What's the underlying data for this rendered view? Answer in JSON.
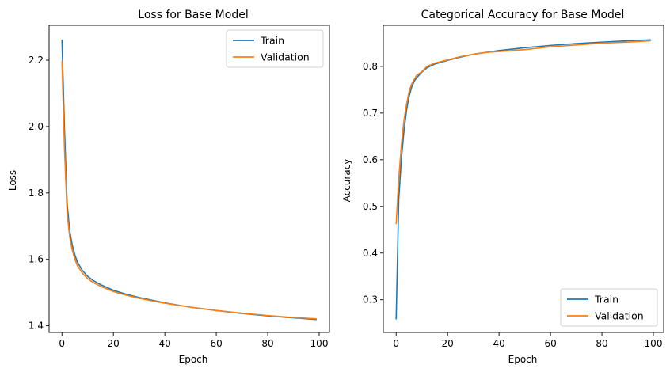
{
  "chart_data": [
    {
      "type": "line",
      "title": "Loss for Base Model",
      "xlabel": "Epoch",
      "ylabel": "Loss",
      "xlim": [
        -5,
        104
      ],
      "ylim": [
        1.38,
        2.305
      ],
      "xticks": [
        0,
        20,
        40,
        60,
        80,
        100
      ],
      "yticks": [
        1.4,
        1.6,
        1.8,
        2.0,
        2.2
      ],
      "legend": "top-right",
      "grid": false,
      "series": [
        {
          "name": "Train",
          "color": "#1f77b4",
          "points": [
            [
              0,
              2.262
            ],
            [
              1,
              1.99
            ],
            [
              2,
              1.77
            ],
            [
              3,
              1.686
            ],
            [
              4,
              1.643
            ],
            [
              5,
              1.614
            ],
            [
              6,
              1.592
            ],
            [
              8,
              1.566
            ],
            [
              10,
              1.549
            ],
            [
              12,
              1.537
            ],
            [
              15,
              1.524
            ],
            [
              20,
              1.507
            ],
            [
              25,
              1.495
            ],
            [
              30,
              1.485
            ],
            [
              35,
              1.477
            ],
            [
              40,
              1.469
            ],
            [
              50,
              1.456
            ],
            [
              60,
              1.446
            ],
            [
              70,
              1.437
            ],
            [
              80,
              1.43
            ],
            [
              90,
              1.424
            ],
            [
              99,
              1.419
            ]
          ]
        },
        {
          "name": "Validation",
          "color": "#ff7f0e",
          "points": [
            [
              0,
              2.197
            ],
            [
              1,
              1.93
            ],
            [
              2,
              1.74
            ],
            [
              3,
              1.668
            ],
            [
              4,
              1.628
            ],
            [
              5,
              1.601
            ],
            [
              6,
              1.581
            ],
            [
              8,
              1.558
            ],
            [
              10,
              1.542
            ],
            [
              12,
              1.531
            ],
            [
              15,
              1.519
            ],
            [
              20,
              1.503
            ],
            [
              25,
              1.492
            ],
            [
              30,
              1.483
            ],
            [
              35,
              1.475
            ],
            [
              40,
              1.468
            ],
            [
              50,
              1.456
            ],
            [
              60,
              1.446
            ],
            [
              70,
              1.438
            ],
            [
              80,
              1.431
            ],
            [
              90,
              1.425
            ],
            [
              99,
              1.421
            ]
          ]
        }
      ]
    },
    {
      "type": "line",
      "title": "Categorical Accuracy for Base Model",
      "xlabel": "Epoch",
      "ylabel": "Accuracy",
      "xlim": [
        -5,
        104
      ],
      "ylim": [
        0.23,
        0.888
      ],
      "xticks": [
        0,
        20,
        40,
        60,
        80,
        100
      ],
      "yticks": [
        0.3,
        0.4,
        0.5,
        0.6,
        0.7,
        0.8
      ],
      "legend": "bottom-right",
      "grid": false,
      "series": [
        {
          "name": "Train",
          "color": "#1f77b4",
          "points": [
            [
              0,
              0.258
            ],
            [
              1,
              0.515
            ],
            [
              2,
              0.6
            ],
            [
              3,
              0.66
            ],
            [
              4,
              0.705
            ],
            [
              5,
              0.735
            ],
            [
              6,
              0.755
            ],
            [
              7,
              0.768
            ],
            [
              8,
              0.776
            ],
            [
              10,
              0.788
            ],
            [
              12,
              0.797
            ],
            [
              15,
              0.805
            ],
            [
              20,
              0.813
            ],
            [
              25,
              0.82
            ],
            [
              30,
              0.826
            ],
            [
              35,
              0.83
            ],
            [
              40,
              0.834
            ],
            [
              50,
              0.84
            ],
            [
              60,
              0.845
            ],
            [
              70,
              0.849
            ],
            [
              80,
              0.852
            ],
            [
              90,
              0.855
            ],
            [
              99,
              0.857
            ]
          ]
        },
        {
          "name": "Validation",
          "color": "#ff7f0e",
          "points": [
            [
              0,
              0.462
            ],
            [
              1,
              0.56
            ],
            [
              2,
              0.63
            ],
            [
              3,
              0.683
            ],
            [
              4,
              0.718
            ],
            [
              5,
              0.746
            ],
            [
              6,
              0.762
            ],
            [
              7,
              0.772
            ],
            [
              8,
              0.781
            ],
            [
              10,
              0.789
            ],
            [
              12,
              0.8
            ],
            [
              15,
              0.807
            ],
            [
              20,
              0.814
            ],
            [
              25,
              0.821
            ],
            [
              30,
              0.826
            ],
            [
              35,
              0.83
            ],
            [
              40,
              0.832
            ],
            [
              50,
              0.836
            ],
            [
              60,
              0.842
            ],
            [
              70,
              0.846
            ],
            [
              80,
              0.85
            ],
            [
              90,
              0.852
            ],
            [
              99,
              0.855
            ]
          ]
        }
      ]
    }
  ]
}
